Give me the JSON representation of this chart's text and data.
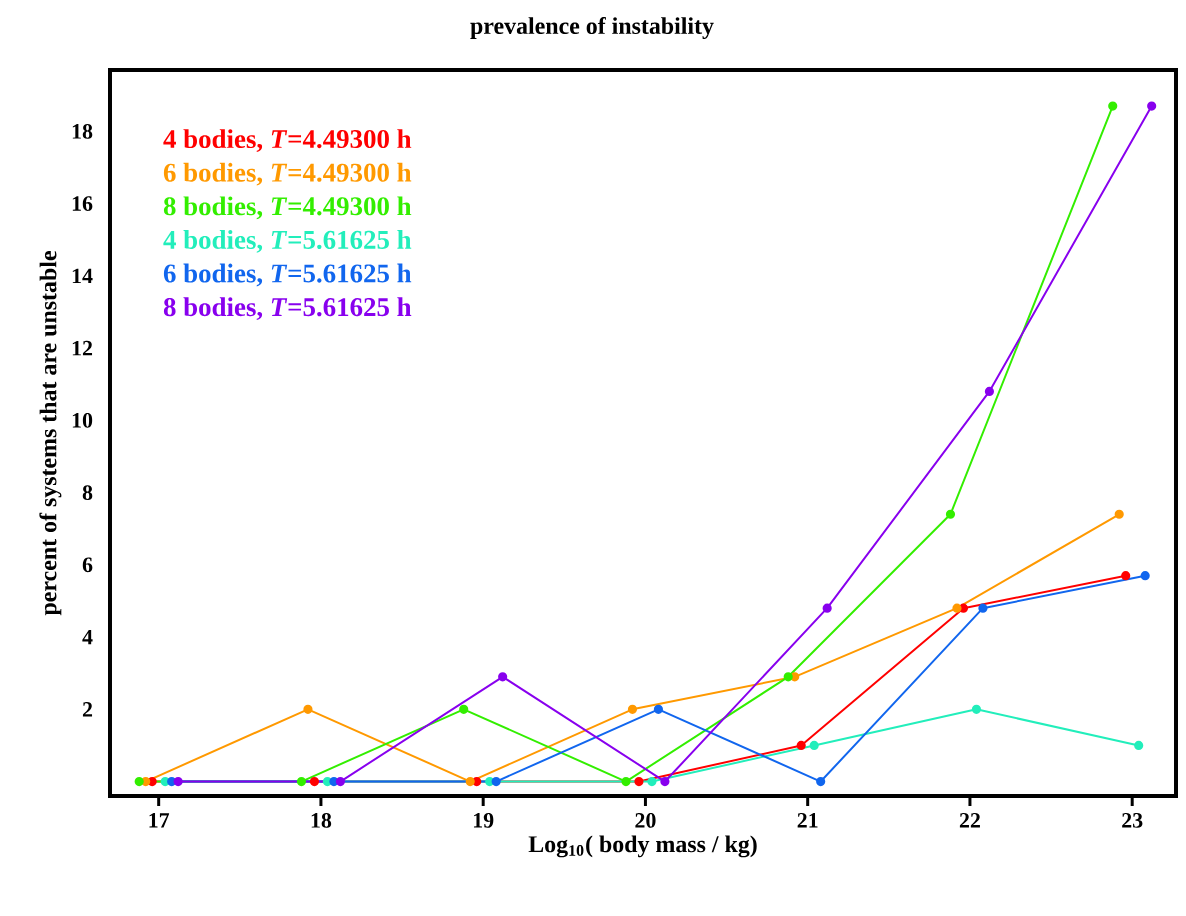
{
  "chart_data": {
    "type": "line",
    "title": "prevalence of instability",
    "xlabel": "Log$_{10}$( body mass / kg)",
    "ylabel": "percent of systems that are unstable",
    "xlim": [
      16.7,
      23.27
    ],
    "ylim": [
      -0.4,
      19.7
    ],
    "xticks": [
      17,
      18,
      19,
      20,
      21,
      22,
      23
    ],
    "yticks": [
      2,
      4,
      6,
      8,
      10,
      12,
      14,
      16,
      18
    ],
    "grid": false,
    "legend": "top left",
    "marker": "circle",
    "line_style": "solid",
    "series": [
      {
        "name": "4 bodies,  *T*=4.49300 h",
        "color": "#ff0000",
        "x": [
          16.96,
          17.96,
          18.96,
          19.96,
          20.96,
          21.96,
          22.96
        ],
        "values": [
          0,
          0,
          0,
          0,
          1.0,
          4.8,
          5.7
        ]
      },
      {
        "name": "6 bodies,  *T*=4.49300 h",
        "color": "#ff9900",
        "x": [
          16.92,
          17.92,
          18.92,
          19.92,
          20.92,
          21.92,
          22.92
        ],
        "values": [
          0,
          2.0,
          0,
          2.0,
          2.9,
          4.8,
          7.4
        ]
      },
      {
        "name": "8 bodies,  *T*=4.49300 h",
        "color": "#33ee00",
        "x": [
          16.88,
          17.88,
          18.88,
          19.88,
          20.88,
          21.88,
          22.88
        ],
        "values": [
          0,
          0,
          2.0,
          0,
          2.9,
          7.4,
          18.7
        ]
      },
      {
        "name": "4 bodies,  *T*=5.61625 h",
        "color": "#22eebb",
        "x": [
          17.04,
          18.04,
          19.04,
          20.04,
          21.04,
          22.04,
          23.04
        ],
        "values": [
          0,
          0,
          0,
          0,
          1.0,
          2.0,
          1.0
        ]
      },
      {
        "name": "6 bodies,  *T*=5.61625 h",
        "color": "#1166ee",
        "x": [
          17.08,
          18.08,
          19.08,
          20.08,
          21.08,
          22.08,
          23.08
        ],
        "values": [
          0,
          0,
          0,
          2.0,
          0,
          4.8,
          5.7
        ]
      },
      {
        "name": "8 bodies,  *T*=5.61625 h",
        "color": "#8800ee",
        "x": [
          17.12,
          18.12,
          19.12,
          20.12,
          21.12,
          22.12,
          23.12
        ],
        "values": [
          0,
          0,
          2.9,
          0,
          4.8,
          10.8,
          18.7
        ]
      }
    ]
  }
}
